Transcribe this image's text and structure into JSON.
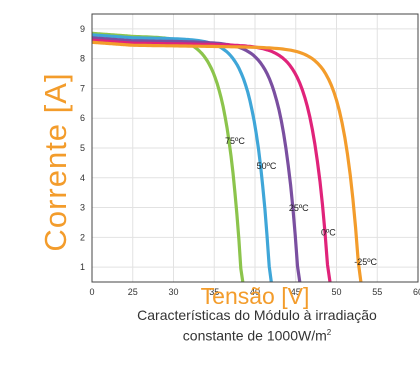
{
  "chart_data": {
    "type": "line",
    "xlabel": "Tensão [V]",
    "ylabel": "Corrente  [A]",
    "xlim": [
      0,
      60
    ],
    "ylim": [
      0.5,
      9.5
    ],
    "xticks": [
      0,
      25,
      30,
      35,
      40,
      45,
      50,
      55,
      60
    ],
    "yticks": [
      1,
      2,
      3,
      4,
      5,
      6,
      7,
      8,
      9
    ],
    "grid": true,
    "series": [
      {
        "name": "75ºC",
        "color": "#8cc44c",
        "isc": 8.85,
        "voc": 38.5,
        "knee_v": 28.5
      },
      {
        "name": "50ºC",
        "color": "#3fa6d8",
        "isc": 8.8,
        "voc": 42.0,
        "knee_v": 32.0
      },
      {
        "name": "25ºC",
        "color": "#7a4fa0",
        "isc": 8.7,
        "voc": 45.5,
        "knee_v": 35.0
      },
      {
        "name": "0ºC",
        "color": "#e0237a",
        "isc": 8.62,
        "voc": 49.2,
        "knee_v": 38.5
      },
      {
        "name": "-25ºC",
        "color": "#f39c2b",
        "isc": 8.55,
        "voc": 53.0,
        "knee_v": 42.5
      }
    ]
  },
  "caption": {
    "line1": "Características do Módulo à irradiação",
    "line2": "constante de 1000W/m",
    "line2_sup": "2"
  }
}
